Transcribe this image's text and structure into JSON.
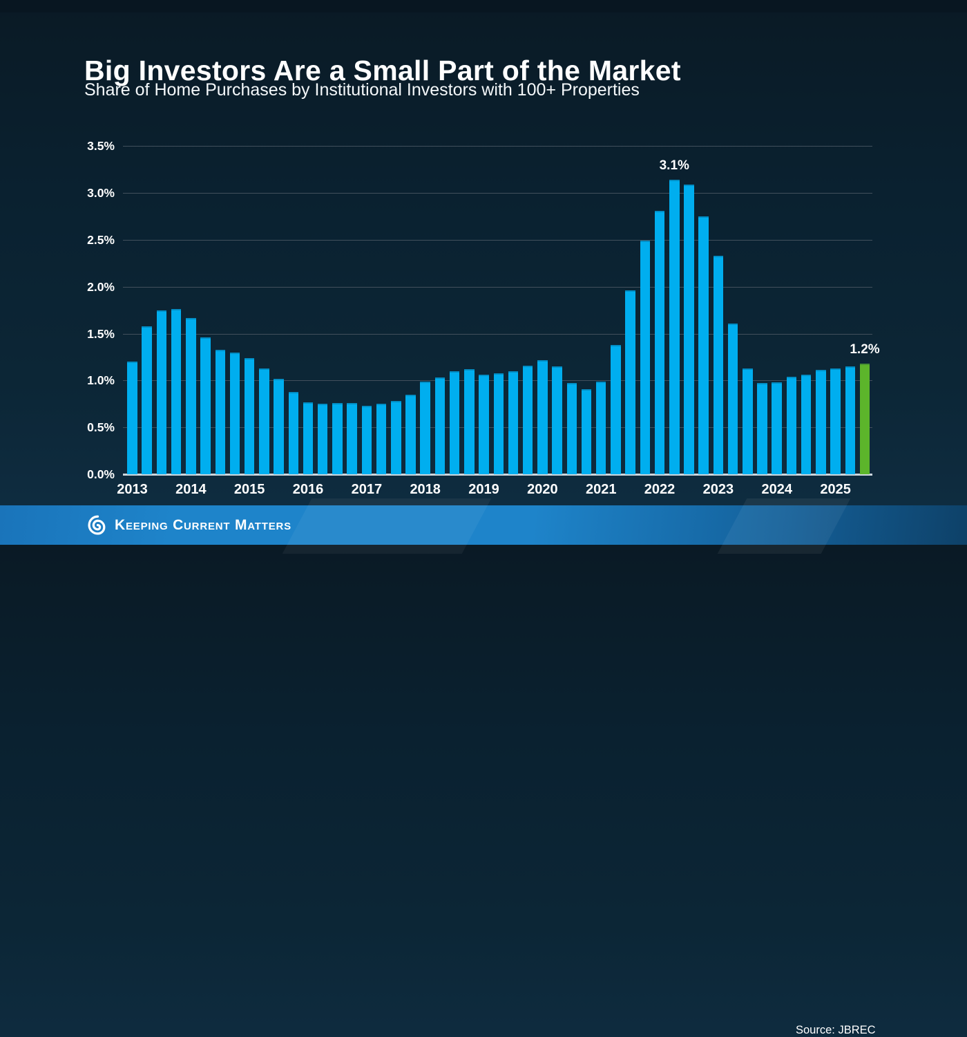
{
  "title": "Big Investors Are a Small Part of the Market",
  "subtitle": "Share of Home Purchases by Institutional Investors with 100+ Properties",
  "chart_data": {
    "type": "bar",
    "title": "Big Investors Are a Small Part of the Market",
    "subtitle": "Share of Home Purchases by Institutional Investors with 100+ Properties",
    "unit": "%",
    "ylim": [
      0,
      3.5
    ],
    "yticks": [
      "0.0%",
      "0.5%",
      "1.0%",
      "1.5%",
      "2.0%",
      "2.5%",
      "3.0%",
      "3.5%"
    ],
    "grid": true,
    "legend": "none",
    "x_tick_years": [
      "2013",
      "2014",
      "2015",
      "2016",
      "2017",
      "2018",
      "2019",
      "2020",
      "2021",
      "2022",
      "2023",
      "2024",
      "2025"
    ],
    "categories": [
      "2013 Q1",
      "2013 Q2",
      "2013 Q3",
      "2013 Q4",
      "2014 Q1",
      "2014 Q2",
      "2014 Q3",
      "2014 Q4",
      "2015 Q1",
      "2015 Q2",
      "2015 Q3",
      "2015 Q4",
      "2016 Q1",
      "2016 Q2",
      "2016 Q3",
      "2016 Q4",
      "2017 Q1",
      "2017 Q2",
      "2017 Q3",
      "2017 Q4",
      "2018 Q1",
      "2018 Q2",
      "2018 Q3",
      "2018 Q4",
      "2019 Q1",
      "2019 Q2",
      "2019 Q3",
      "2019 Q4",
      "2020 Q1",
      "2020 Q2",
      "2020 Q3",
      "2020 Q4",
      "2021 Q1",
      "2021 Q2",
      "2021 Q3",
      "2021 Q4",
      "2022 Q1",
      "2022 Q2",
      "2022 Q3",
      "2022 Q4",
      "2023 Q1",
      "2023 Q2",
      "2023 Q3",
      "2023 Q4",
      "2024 Q1",
      "2024 Q2",
      "2024 Q3",
      "2024 Q4",
      "2025 Q1",
      "2025 Q2",
      "2025 Q3"
    ],
    "values": [
      1.2,
      1.58,
      1.75,
      1.76,
      1.67,
      1.46,
      1.33,
      1.3,
      1.24,
      1.13,
      1.02,
      0.88,
      0.77,
      0.75,
      0.76,
      0.76,
      0.73,
      0.75,
      0.78,
      0.85,
      0.99,
      1.03,
      1.1,
      1.12,
      1.06,
      1.08,
      1.1,
      1.16,
      1.22,
      1.15,
      0.97,
      0.91,
      0.99,
      1.38,
      1.96,
      2.49,
      2.81,
      3.14,
      3.09,
      2.75,
      2.33,
      1.61,
      1.13,
      0.97,
      0.98,
      1.04,
      1.06,
      1.11,
      1.13,
      1.15,
      1.18
    ],
    "highlight_category": "2025 Q3",
    "annotations": [
      {
        "category": "2022 Q2",
        "label": "3.1%"
      },
      {
        "category": "2025 Q3",
        "label": "1.2%"
      }
    ]
  },
  "footer": {
    "brand": "Keeping Current Matters",
    "source": "Source: JBREC"
  },
  "colors": {
    "bar": "#00AEEF",
    "highlight": "#5CB52B",
    "background": "#0B2130",
    "footer_blue": "#1E84CA",
    "grid": "#42505C",
    "axis_line": "#CCD6DD",
    "text": "#FFFFFF"
  }
}
